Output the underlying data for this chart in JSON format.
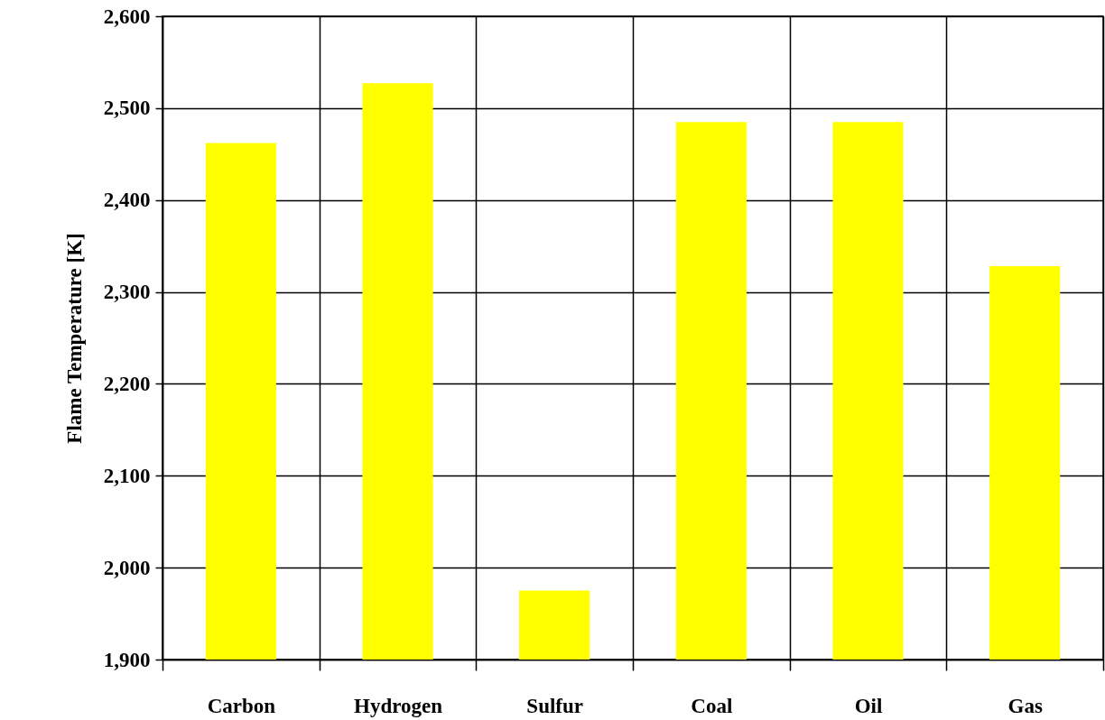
{
  "chart_data": {
    "type": "bar",
    "ylabel": "Flame Temperature [K]",
    "categories": [
      "Carbon",
      "Hydrogen",
      "Sulfur",
      "Coal",
      "Oil",
      "Gas"
    ],
    "values": [
      2462,
      2527,
      1975,
      2485,
      2485,
      2328
    ],
    "color": "#ffff00",
    "ylim": [
      1900,
      2600
    ],
    "yticks": [
      {
        "value": 1900,
        "label": "1,900"
      },
      {
        "value": 2000,
        "label": "2,000"
      },
      {
        "value": 2100,
        "label": "2,100"
      },
      {
        "value": 2200,
        "label": "2,200"
      },
      {
        "value": 2300,
        "label": "2,300"
      },
      {
        "value": 2400,
        "label": "2,400"
      },
      {
        "value": 2500,
        "label": "2,500"
      },
      {
        "value": 2600,
        "label": "2,600"
      }
    ],
    "grid": true
  }
}
